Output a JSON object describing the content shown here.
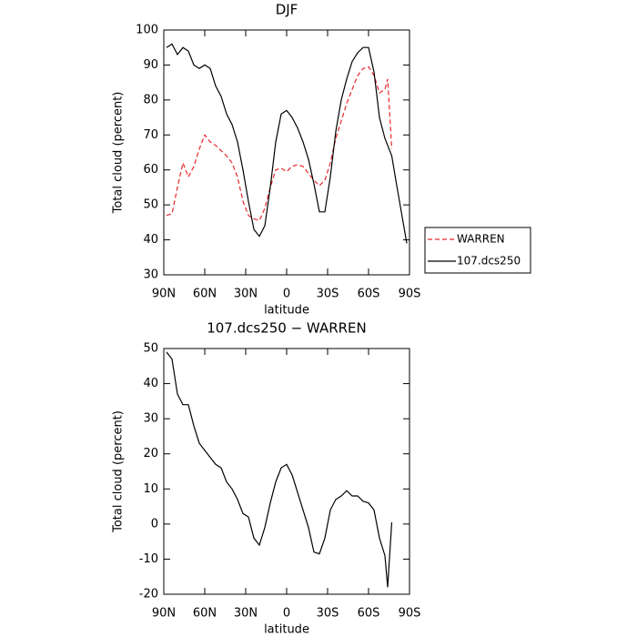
{
  "chart_data": [
    {
      "type": "line",
      "title": "DJF",
      "xlabel": "latitude",
      "ylabel": "Total cloud (percent)",
      "x": [
        88,
        84,
        80,
        76,
        72,
        68,
        64,
        60,
        56,
        52,
        48,
        44,
        40,
        36,
        32,
        28,
        24,
        20,
        16,
        12,
        8,
        4,
        0,
        -4,
        -8,
        -12,
        -16,
        -20,
        -24,
        -28,
        -32,
        -36,
        -40,
        -44,
        -48,
        -52,
        -56,
        -60,
        -64,
        -68,
        -72,
        -74,
        -77,
        -80,
        -84,
        -88
      ],
      "xlim": [
        90,
        -90
      ],
      "xticks": [
        {
          "value": 90,
          "label": "90N"
        },
        {
          "value": 60,
          "label": "60N"
        },
        {
          "value": 30,
          "label": "30N"
        },
        0,
        {
          "value": -30,
          "label": "30S"
        },
        {
          "value": -60,
          "label": "60S"
        },
        {
          "value": -90,
          "label": "90S"
        }
      ],
      "ylim": [
        30,
        100
      ],
      "yticks": [
        30,
        40,
        50,
        60,
        70,
        80,
        90,
        100
      ],
      "legend": "right",
      "series": [
        {
          "name": "WARREN",
          "color": "#e8262b",
          "line_style": "dashed",
          "values": [
            47,
            47.5,
            55,
            62,
            58,
            61,
            66,
            70,
            68,
            67,
            65.5,
            64,
            62,
            58,
            51,
            47,
            46,
            45.5,
            49,
            55,
            60,
            60.5,
            59.5,
            61,
            61.5,
            61,
            59,
            57,
            55.5,
            57,
            62,
            69,
            74,
            79,
            83,
            87,
            89,
            89.5,
            87,
            82,
            83,
            86,
            66,
            null,
            null,
            null
          ]
        },
        {
          "name": "107.dcs250",
          "color": "#000000",
          "line_style": "solid",
          "values": [
            95,
            96,
            93,
            95,
            94,
            90,
            89,
            90,
            89,
            84,
            81,
            76,
            73,
            68,
            60,
            51,
            43,
            41,
            44,
            55,
            68,
            76,
            77,
            75,
            72,
            68,
            63,
            56,
            48,
            48,
            58,
            71,
            80,
            86,
            91,
            93.5,
            95,
            95,
            88,
            75,
            69,
            67,
            64,
            57,
            48,
            39
          ]
        }
      ]
    },
    {
      "type": "line",
      "title": "107.dcs250 − WARREN",
      "xlabel": "latitude",
      "ylabel": "Total cloud (percent)",
      "x": [
        88,
        84,
        80,
        76,
        72,
        68,
        64,
        60,
        56,
        52,
        48,
        44,
        40,
        36,
        32,
        28,
        24,
        20,
        16,
        12,
        8,
        4,
        0,
        -4,
        -8,
        -12,
        -16,
        -20,
        -24,
        -28,
        -32,
        -36,
        -40,
        -44,
        -48,
        -52,
        -56,
        -60,
        -64,
        -68,
        -72,
        -74,
        -77,
        -80,
        -84,
        -88
      ],
      "xlim": [
        90,
        -90
      ],
      "xticks": [
        {
          "value": 90,
          "label": "90N"
        },
        {
          "value": 60,
          "label": "60N"
        },
        {
          "value": 30,
          "label": "30N"
        },
        0,
        {
          "value": -30,
          "label": "30S"
        },
        {
          "value": -60,
          "label": "60S"
        },
        {
          "value": -90,
          "label": "90S"
        }
      ],
      "ylim": [
        -20,
        50
      ],
      "yticks": [
        -20,
        -10,
        0,
        10,
        20,
        30,
        40,
        50
      ],
      "series": [
        {
          "color": "#000000",
          "line_style": "solid",
          "values": [
            49,
            47,
            37,
            34,
            34,
            28,
            23,
            21,
            19,
            17,
            16,
            12,
            10,
            7,
            3,
            2,
            -4,
            -6,
            -1,
            6,
            12,
            16,
            17,
            14,
            9,
            4,
            -1,
            -8,
            -8.5,
            -4,
            4,
            7,
            8,
            9.5,
            8,
            8,
            6.5,
            6,
            4,
            -4,
            -9,
            -18,
            0.5,
            null,
            null,
            null
          ]
        }
      ]
    }
  ]
}
